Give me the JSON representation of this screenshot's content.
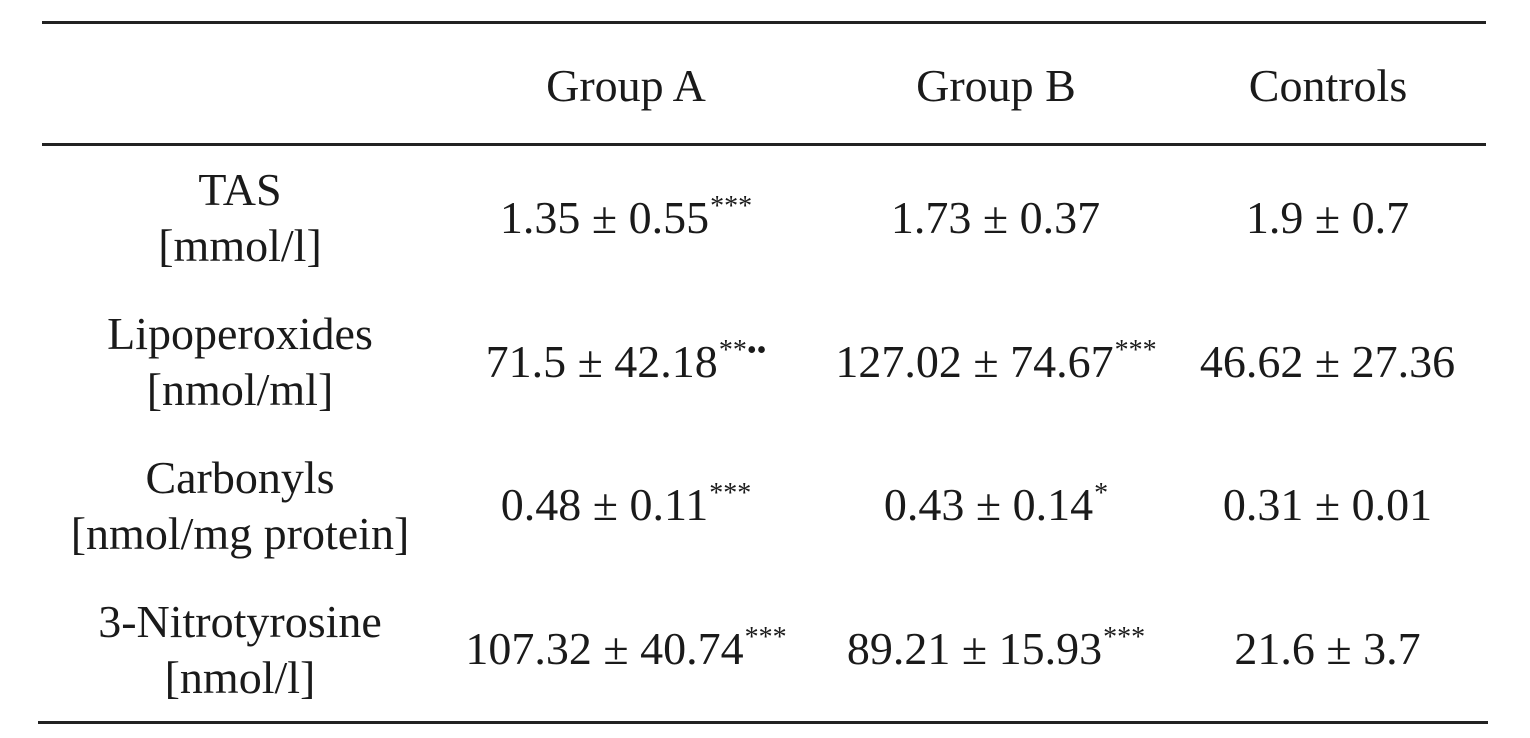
{
  "table": {
    "header": {
      "row_label": "",
      "columns": [
        "Group A",
        "Group B",
        "Controls"
      ]
    },
    "rows": [
      {
        "name": "TAS",
        "unit": "[mmol/l]",
        "values": [
          {
            "value": "1.35 ± 0.55",
            "mark": "***"
          },
          {
            "value": "1.73 ± 0.37",
            "mark": ""
          },
          {
            "value": "1.9 ± 0.7",
            "mark": ""
          }
        ]
      },
      {
        "name": "Lipoperoxides",
        "unit": "[nmol/ml]",
        "values": [
          {
            "value": "71.5 ± 42.18",
            "mark": "**••"
          },
          {
            "value": "127.02 ± 74.67",
            "mark": "***"
          },
          {
            "value": "46.62 ± 27.36",
            "mark": ""
          }
        ]
      },
      {
        "name": "Carbonyls",
        "unit": "[nmol/mg protein]",
        "values": [
          {
            "value": "0.48 ± 0.11",
            "mark": "***"
          },
          {
            "value": "0.43 ± 0.14",
            "mark": "*"
          },
          {
            "value": "0.31 ± 0.01",
            "mark": ""
          }
        ]
      },
      {
        "name": "3-Nitrotyrosine",
        "unit": "[nmol/l]",
        "values": [
          {
            "value": "107.32 ± 40.74",
            "mark": "***"
          },
          {
            "value": "89.21 ± 15.93",
            "mark": "***"
          },
          {
            "value": "21.6 ± 3.7",
            "mark": ""
          }
        ]
      }
    ]
  }
}
